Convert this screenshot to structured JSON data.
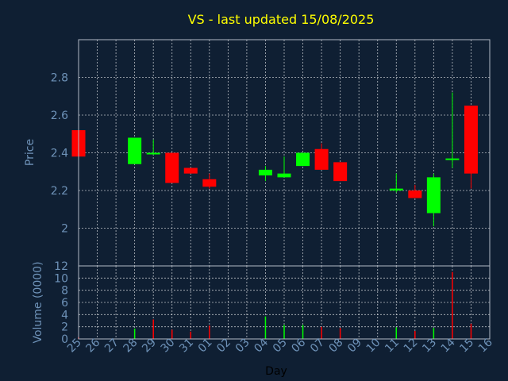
{
  "chart_data": [
    {
      "type": "candlestick",
      "title": "VS - last updated 15/08/2025",
      "ylabel": "Price",
      "ylim": [
        1.8,
        3.0
      ],
      "yticks": [
        2,
        2.2,
        2.4,
        2.6,
        2.8
      ],
      "ytick_labels": [
        "2",
        "2.2",
        "2.4",
        "2.6",
        "2.8"
      ],
      "grid": true,
      "up_color": "#00ff00",
      "down_color": "#ff0000",
      "candles": [
        {
          "day": "25",
          "open": 2.52,
          "high": 2.52,
          "low": 2.38,
          "close": 2.38
        },
        {
          "day": "28",
          "open": 2.34,
          "high": 2.48,
          "low": 2.34,
          "close": 2.48
        },
        {
          "day": "29",
          "open": 2.4,
          "high": 2.47,
          "low": 2.39,
          "close": 2.4
        },
        {
          "day": "30",
          "open": 2.4,
          "high": 2.4,
          "low": 2.24,
          "close": 2.24
        },
        {
          "day": "31",
          "open": 2.32,
          "high": 2.32,
          "low": 2.29,
          "close": 2.29
        },
        {
          "day": "01",
          "open": 2.26,
          "high": 2.29,
          "low": 2.21,
          "close": 2.22
        },
        {
          "day": "04",
          "open": 2.28,
          "high": 2.33,
          "low": 2.25,
          "close": 2.31
        },
        {
          "day": "05",
          "open": 2.27,
          "high": 2.38,
          "low": 2.27,
          "close": 2.29
        },
        {
          "day": "06",
          "open": 2.33,
          "high": 2.4,
          "low": 2.33,
          "close": 2.4
        },
        {
          "day": "07",
          "open": 2.42,
          "high": 2.45,
          "low": 2.31,
          "close": 2.31
        },
        {
          "day": "08",
          "open": 2.35,
          "high": 2.35,
          "low": 2.25,
          "close": 2.25
        },
        {
          "day": "11",
          "open": 2.2,
          "high": 2.29,
          "low": 2.19,
          "close": 2.21
        },
        {
          "day": "12",
          "open": 2.2,
          "high": 2.23,
          "low": 2.16,
          "close": 2.16
        },
        {
          "day": "13",
          "open": 2.08,
          "high": 2.29,
          "low": 2.01,
          "close": 2.27
        },
        {
          "day": "14",
          "open": 2.37,
          "high": 2.72,
          "low": 2.32,
          "close": 2.37
        },
        {
          "day": "15",
          "open": 2.65,
          "high": 2.65,
          "low": 2.21,
          "close": 2.29
        }
      ]
    },
    {
      "type": "bar",
      "ylabel": "Volume (0000)",
      "xlabel": "Day",
      "ylim": [
        0,
        12
      ],
      "yticks": [
        0,
        2,
        4,
        6,
        8,
        10,
        12
      ],
      "ytick_labels": [
        "0",
        "2",
        "4",
        "6",
        "8",
        "10",
        "12"
      ],
      "grid": true,
      "categories": [
        "25",
        "26",
        "27",
        "28",
        "29",
        "30",
        "31",
        "01",
        "02",
        "03",
        "04",
        "05",
        "06",
        "07",
        "08",
        "09",
        "10",
        "11",
        "12",
        "13",
        "14",
        "15",
        "16"
      ],
      "bars": [
        {
          "day": "25",
          "value": 0.3,
          "color": "#ff0000"
        },
        {
          "day": "28",
          "value": 1.7,
          "color": "#00ff00"
        },
        {
          "day": "29",
          "value": 3.2,
          "color": "#ff0000"
        },
        {
          "day": "30",
          "value": 1.5,
          "color": "#ff0000"
        },
        {
          "day": "31",
          "value": 1.2,
          "color": "#ff0000"
        },
        {
          "day": "01",
          "value": 2.2,
          "color": "#ff0000"
        },
        {
          "day": "04",
          "value": 3.7,
          "color": "#00ff00"
        },
        {
          "day": "05",
          "value": 2.3,
          "color": "#00ff00"
        },
        {
          "day": "06",
          "value": 2.3,
          "color": "#00ff00"
        },
        {
          "day": "07",
          "value": 2.0,
          "color": "#ff0000"
        },
        {
          "day": "08",
          "value": 1.8,
          "color": "#ff0000"
        },
        {
          "day": "11",
          "value": 1.9,
          "color": "#00ff00"
        },
        {
          "day": "12",
          "value": 1.3,
          "color": "#ff0000"
        },
        {
          "day": "13",
          "value": 1.8,
          "color": "#00ff00"
        },
        {
          "day": "14",
          "value": 11.0,
          "color": "#ff0000"
        },
        {
          "day": "15",
          "value": 2.5,
          "color": "#ff0000"
        }
      ]
    }
  ]
}
